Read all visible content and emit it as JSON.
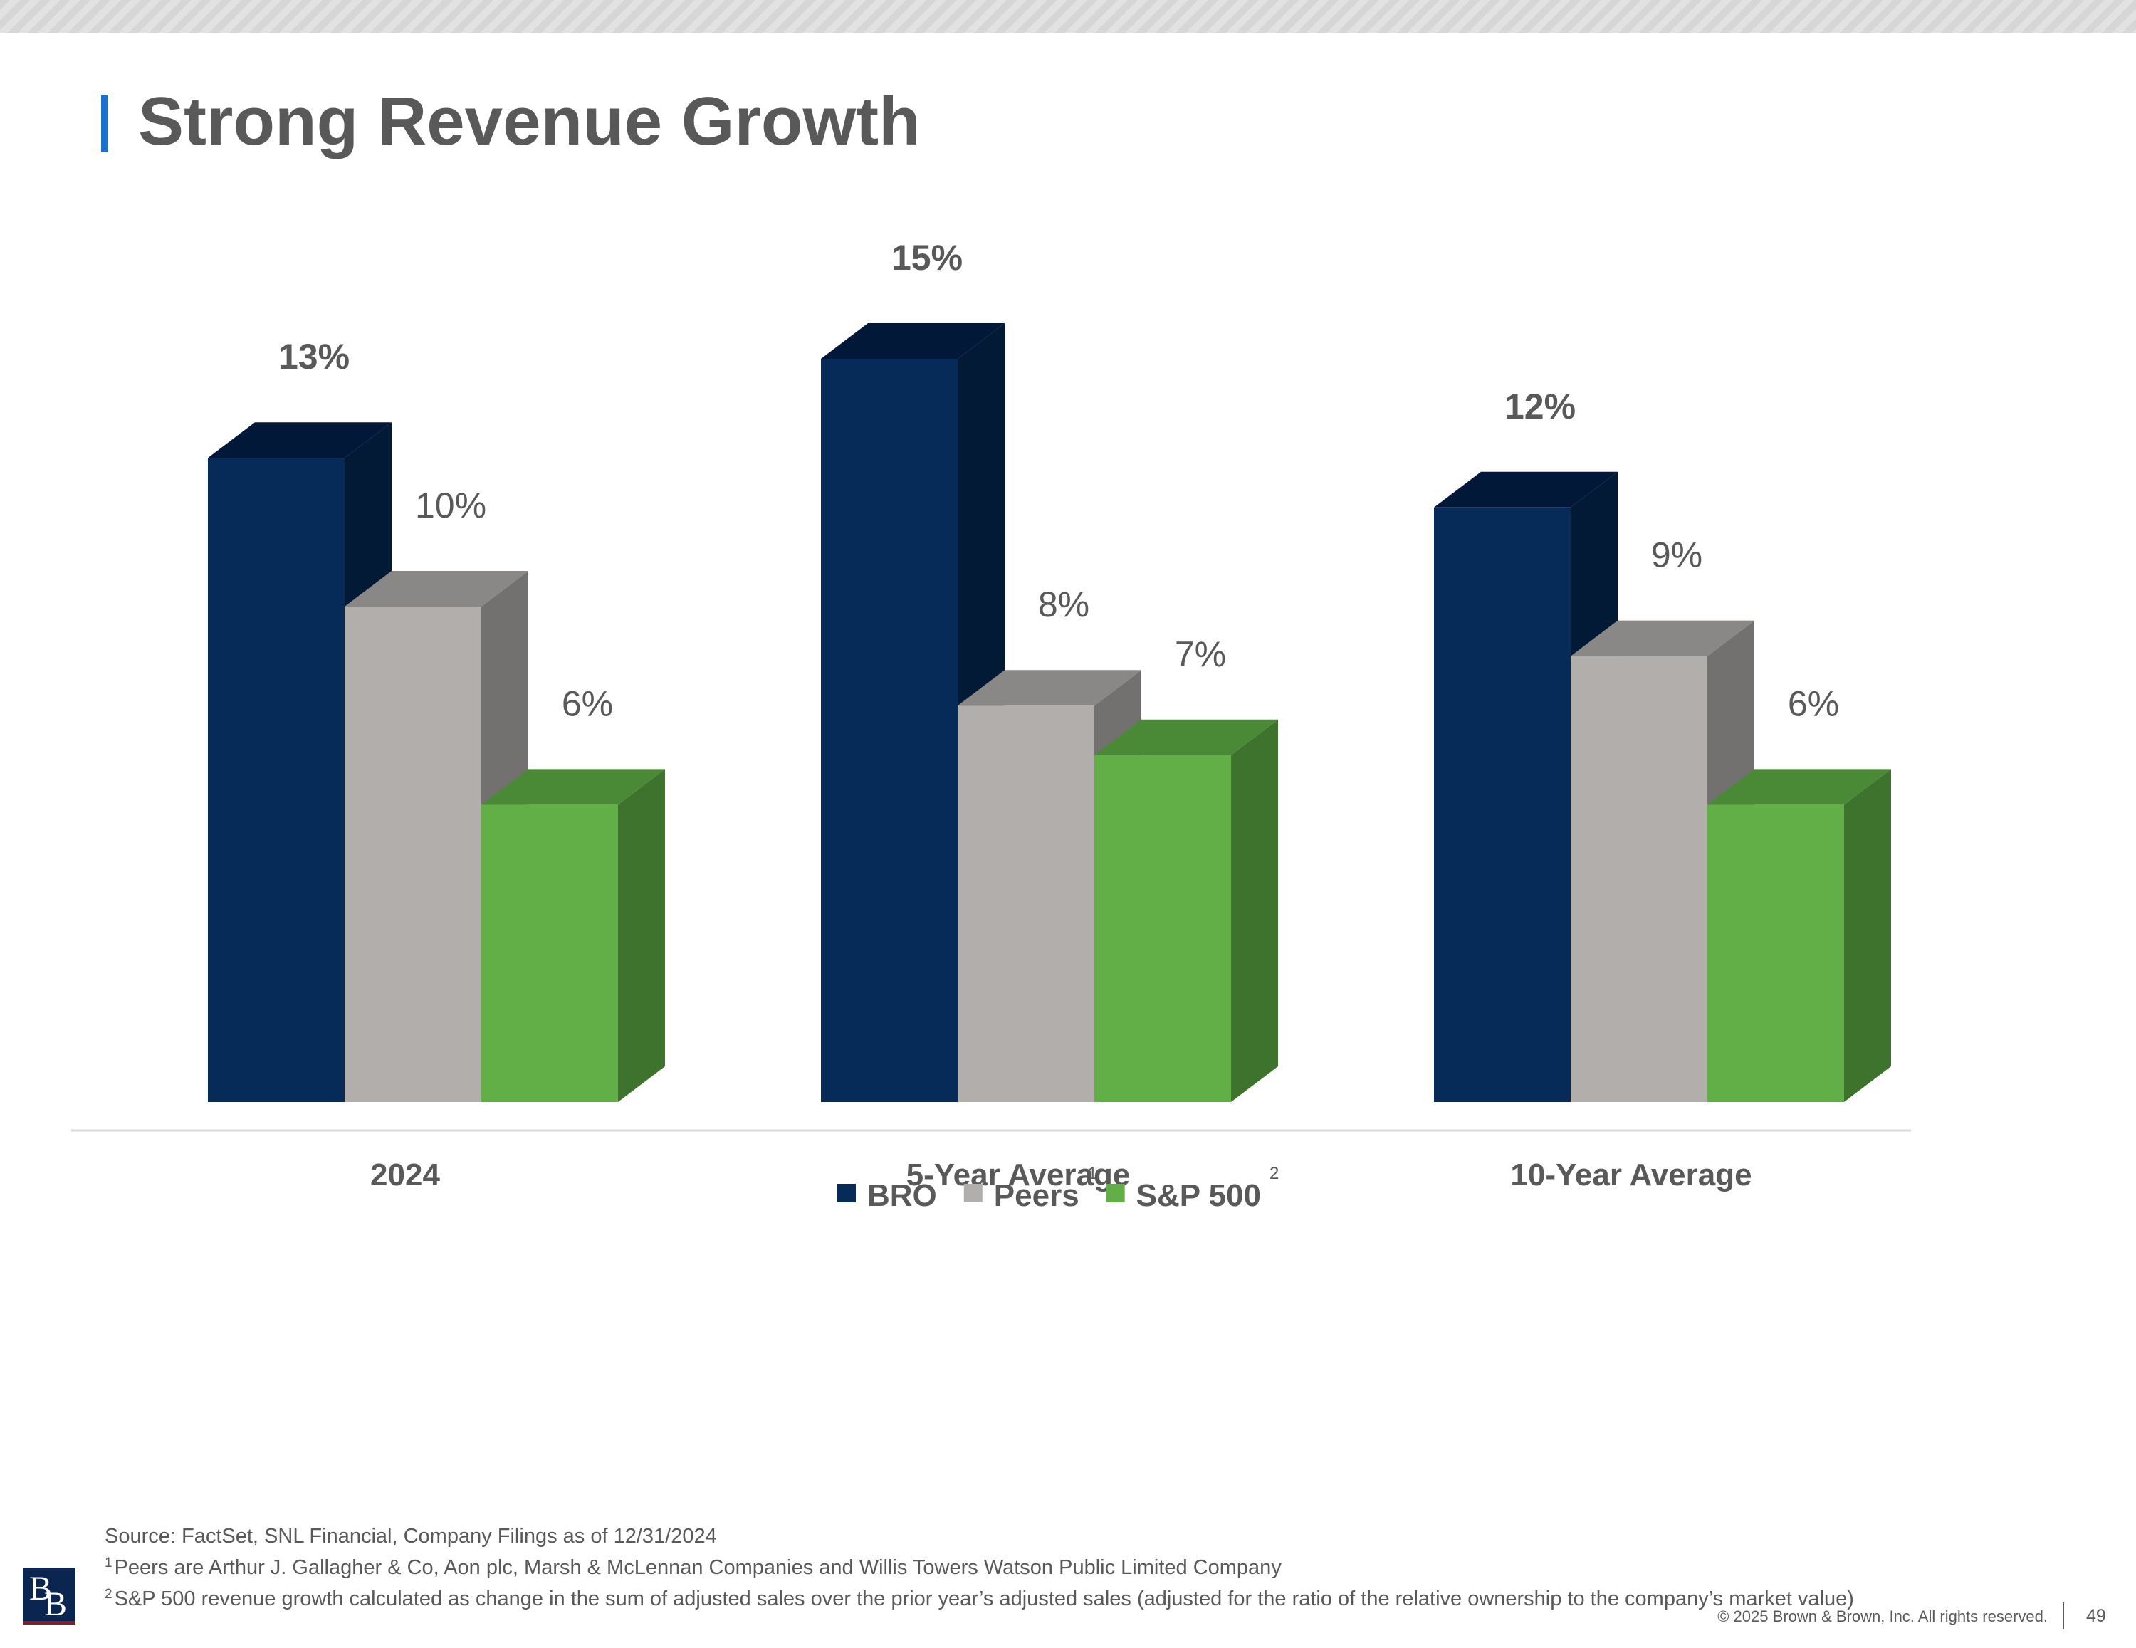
{
  "slide": {
    "title": "Strong Revenue Growth",
    "footnotes": {
      "source": "Source: FactSet, SNL Financial, Company Filings as of 12/31/2024",
      "note1_marker": "1",
      "note1": "Peers are Arthur J. Gallagher & Co, Aon plc, Marsh & McLennan Companies and Willis Towers Watson Public Limited Company",
      "note2_marker": "2",
      "note2": "S&P 500 revenue growth calculated as change in the sum of adjusted sales over the prior year’s adjusted sales (adjusted for the ratio of the relative ownership to the company’s market value)"
    },
    "copyright": "© 2025 Brown & Brown, Inc. All rights reserved.",
    "page_number": "49",
    "logo_letters": [
      "B",
      "B"
    ]
  },
  "chart_data": {
    "type": "bar",
    "style": "3d-clustered-column",
    "title": "",
    "xlabel": "",
    "ylabel": "",
    "categories": [
      "2024",
      "5-Year Average",
      "10-Year Average"
    ],
    "series": [
      {
        "name": "BRO",
        "values": [
          13,
          15,
          12
        ],
        "labels": [
          "13%",
          "15%",
          "12%"
        ],
        "front": "#072b58",
        "side": "#031a36",
        "top": "#021838",
        "label_bold": true
      },
      {
        "name": "Peers",
        "legend_marker": "1",
        "values": [
          10,
          8,
          9
        ],
        "labels": [
          "10%",
          "8%",
          "9%"
        ],
        "front": "#b1aeac",
        "side": "#727170",
        "top": "#898887",
        "label_bold": false
      },
      {
        "name": "S&P 500",
        "legend_marker": "2",
        "values": [
          6,
          7,
          6
        ],
        "labels": [
          "6%",
          "7%",
          "6%"
        ],
        "front": "#62af47",
        "side": "#3e732d",
        "top": "#4a8a37",
        "label_bold": false
      }
    ],
    "ylim": [
      0,
      16
    ],
    "grid": false,
    "legend_position": "bottom-center",
    "label_color": "#595959"
  }
}
